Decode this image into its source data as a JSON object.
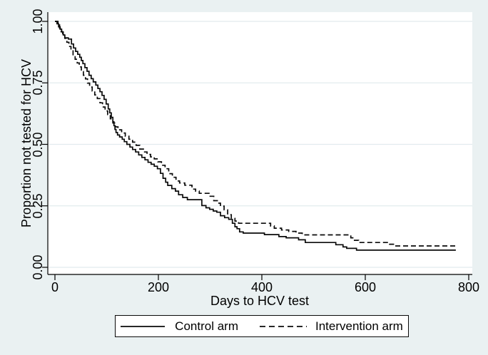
{
  "colors": {
    "background": "#eaf1f2",
    "plot_background": "#ffffff",
    "gridline": "#e2ebee",
    "axis": "#000000",
    "text": "#000000",
    "curve": "#0a0a0a"
  },
  "chart_data": {
    "type": "line",
    "variant": "kaplan-meier-step",
    "title": "",
    "xlabel": "Days to HCV test",
    "ylabel": "Proportion not tested for HCV",
    "xlim": [
      0,
      800
    ],
    "ylim": [
      0,
      1.0
    ],
    "xticks": [
      0,
      200,
      400,
      600,
      800
    ],
    "xtick_labels": [
      "0",
      "200",
      "400",
      "600",
      "800"
    ],
    "yticks": [
      0,
      0.25,
      0.5,
      0.75,
      1.0
    ],
    "ytick_labels": [
      "0.00",
      "0.25",
      "0.50",
      "0.75",
      "1.00"
    ],
    "grid": "horizontal",
    "legend": {
      "position": "bottom-center",
      "border": true,
      "entries": [
        {
          "label": "Control arm",
          "style": "solid"
        },
        {
          "label": "Intervention arm",
          "style": "dashed"
        }
      ]
    },
    "series": [
      {
        "name": "Control arm",
        "style": "solid",
        "color": "#0a0a0a",
        "points": [
          [
            0,
            1.0
          ],
          [
            4,
            0.99
          ],
          [
            7,
            0.978
          ],
          [
            10,
            0.968
          ],
          [
            13,
            0.957
          ],
          [
            16,
            0.945
          ],
          [
            19,
            0.933
          ],
          [
            26,
            0.928
          ],
          [
            32,
            0.908
          ],
          [
            36,
            0.892
          ],
          [
            40,
            0.878
          ],
          [
            44,
            0.866
          ],
          [
            48,
            0.854
          ],
          [
            51,
            0.841
          ],
          [
            54,
            0.828
          ],
          [
            58,
            0.812
          ],
          [
            62,
            0.797
          ],
          [
            66,
            0.781
          ],
          [
            70,
            0.767
          ],
          [
            74,
            0.754
          ],
          [
            79,
            0.741
          ],
          [
            83,
            0.727
          ],
          [
            87,
            0.714
          ],
          [
            91,
            0.699
          ],
          [
            95,
            0.683
          ],
          [
            99,
            0.664
          ],
          [
            103,
            0.644
          ],
          [
            106,
            0.628
          ],
          [
            109,
            0.61
          ],
          [
            112,
            0.592
          ],
          [
            114,
            0.576
          ],
          [
            116,
            0.561
          ],
          [
            118,
            0.548
          ],
          [
            121,
            0.538
          ],
          [
            125,
            0.53
          ],
          [
            130,
            0.521
          ],
          [
            134,
            0.511
          ],
          [
            139,
            0.5
          ],
          [
            145,
            0.489
          ],
          [
            150,
            0.479
          ],
          [
            156,
            0.469
          ],
          [
            162,
            0.457
          ],
          [
            168,
            0.447
          ],
          [
            174,
            0.437
          ],
          [
            180,
            0.427
          ],
          [
            186,
            0.419
          ],
          [
            192,
            0.411
          ],
          [
            198,
            0.401
          ],
          [
            204,
            0.382
          ],
          [
            209,
            0.362
          ],
          [
            214,
            0.346
          ],
          [
            218,
            0.333
          ],
          [
            226,
            0.32
          ],
          [
            233,
            0.31
          ],
          [
            239,
            0.295
          ],
          [
            247,
            0.284
          ],
          [
            256,
            0.275
          ],
          [
            284,
            0.251
          ],
          [
            292,
            0.242
          ],
          [
            299,
            0.236
          ],
          [
            306,
            0.229
          ],
          [
            313,
            0.224
          ],
          [
            320,
            0.21
          ],
          [
            328,
            0.202
          ],
          [
            336,
            0.195
          ],
          [
            343,
            0.179
          ],
          [
            348,
            0.165
          ],
          [
            352,
            0.157
          ],
          [
            357,
            0.144
          ],
          [
            364,
            0.139
          ],
          [
            405,
            0.133
          ],
          [
            433,
            0.125
          ],
          [
            447,
            0.12
          ],
          [
            471,
            0.112
          ],
          [
            484,
            0.101
          ],
          [
            543,
            0.092
          ],
          [
            557,
            0.083
          ],
          [
            564,
            0.077
          ],
          [
            583,
            0.07
          ],
          [
            775,
            0.07
          ]
        ]
      },
      {
        "name": "Intervention arm",
        "style": "dashed",
        "color": "#0a0a0a",
        "points": [
          [
            0,
            1.0
          ],
          [
            6,
            0.986
          ],
          [
            9,
            0.972
          ],
          [
            12,
            0.958
          ],
          [
            15,
            0.946
          ],
          [
            19,
            0.931
          ],
          [
            23,
            0.915
          ],
          [
            27,
            0.898
          ],
          [
            31,
            0.88
          ],
          [
            35,
            0.862
          ],
          [
            39,
            0.846
          ],
          [
            43,
            0.831
          ],
          [
            47,
            0.815
          ],
          [
            51,
            0.796
          ],
          [
            55,
            0.781
          ],
          [
            59,
            0.766
          ],
          [
            63,
            0.749
          ],
          [
            67,
            0.733
          ],
          [
            72,
            0.717
          ],
          [
            77,
            0.701
          ],
          [
            82,
            0.686
          ],
          [
            87,
            0.669
          ],
          [
            92,
            0.652
          ],
          [
            97,
            0.636
          ],
          [
            102,
            0.621
          ],
          [
            107,
            0.604
          ],
          [
            112,
            0.587
          ],
          [
            117,
            0.571
          ],
          [
            122,
            0.559
          ],
          [
            129,
            0.546
          ],
          [
            136,
            0.533
          ],
          [
            143,
            0.521
          ],
          [
            150,
            0.509
          ],
          [
            157,
            0.496
          ],
          [
            164,
            0.481
          ],
          [
            171,
            0.469
          ],
          [
            178,
            0.459
          ],
          [
            185,
            0.449
          ],
          [
            192,
            0.441
          ],
          [
            199,
            0.429
          ],
          [
            206,
            0.415
          ],
          [
            213,
            0.401
          ],
          [
            220,
            0.381
          ],
          [
            227,
            0.366
          ],
          [
            234,
            0.351
          ],
          [
            241,
            0.343
          ],
          [
            251,
            0.334
          ],
          [
            265,
            0.318
          ],
          [
            272,
            0.31
          ],
          [
            279,
            0.301
          ],
          [
            300,
            0.289
          ],
          [
            307,
            0.271
          ],
          [
            314,
            0.261
          ],
          [
            320,
            0.249
          ],
          [
            327,
            0.234
          ],
          [
            334,
            0.214
          ],
          [
            341,
            0.199
          ],
          [
            348,
            0.188
          ],
          [
            355,
            0.179
          ],
          [
            417,
            0.168
          ],
          [
            424,
            0.159
          ],
          [
            438,
            0.152
          ],
          [
            452,
            0.146
          ],
          [
            466,
            0.139
          ],
          [
            478,
            0.132
          ],
          [
            572,
            0.12
          ],
          [
            579,
            0.11
          ],
          [
            587,
            0.101
          ],
          [
            647,
            0.094
          ],
          [
            657,
            0.087
          ],
          [
            775,
            0.087
          ]
        ]
      }
    ]
  },
  "legend_labels": {
    "control": "Control arm",
    "intervention": "Intervention arm"
  }
}
